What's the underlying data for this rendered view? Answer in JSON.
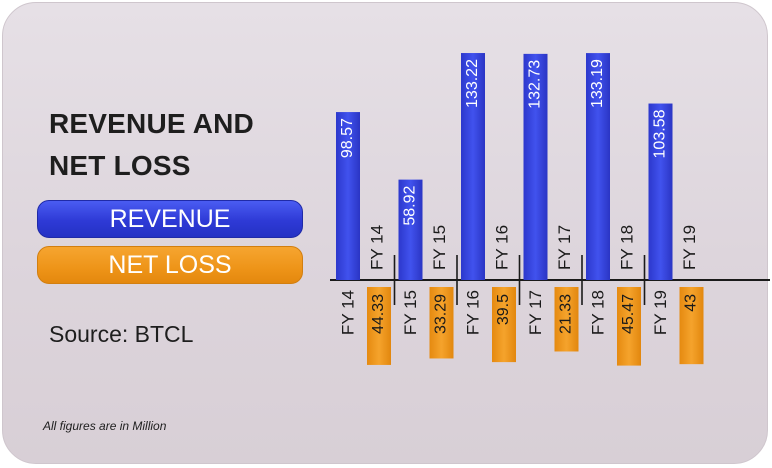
{
  "title_line1": "REVENUE AND",
  "title_line2": "NET LOSS",
  "legend": {
    "revenue_label": "REVENUE",
    "net_loss_label": "NET LOSS"
  },
  "source": "Source: BTCL",
  "footnote": "All figures are in Million",
  "colors": {
    "revenue": "#3343dc",
    "net_loss": "#f19a1f",
    "background": "#e2dbe1",
    "text": "#1e1e1e"
  },
  "chart_data": {
    "type": "bar",
    "categories": [
      "FY 14",
      "FY 15",
      "FY 16",
      "FY 17",
      "FY 18",
      "FY 19"
    ],
    "series": [
      {
        "name": "REVENUE",
        "values": [
          98.57,
          58.92,
          133.22,
          132.73,
          133.19,
          103.58
        ]
      },
      {
        "name": "NET LOSS",
        "values": [
          44.33,
          33.29,
          39.5,
          21.33,
          45.47,
          43
        ]
      }
    ],
    "revenue_labels": [
      "98.57",
      "58.92",
      "133.22",
      "132.73",
      "133.19",
      "103.58"
    ],
    "net_loss_labels": [
      "44.33",
      "33.29",
      "39.5",
      "21.33",
      "45.47",
      "43"
    ],
    "layout": "diverging: revenue bars above baseline, net loss bars below baseline",
    "grid": false
  }
}
